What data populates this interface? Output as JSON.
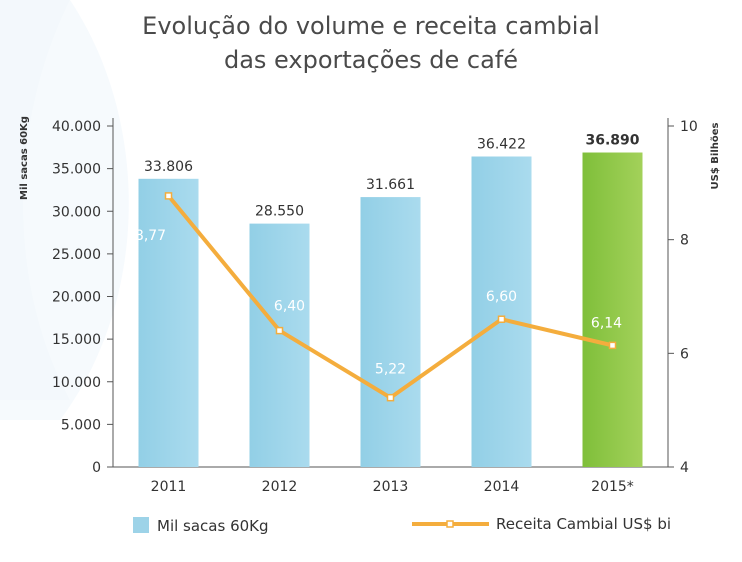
{
  "chart_data": {
    "type": "bar",
    "title": [
      "Evolução do volume e receita cambial",
      "das exportações de café"
    ],
    "categories": [
      "2011",
      "2012",
      "2013",
      "2014",
      "2015*"
    ],
    "y_left": {
      "label": "Mil sacas 60Kg",
      "ticks": [
        "0",
        "5.000",
        "10.000",
        "15.000",
        "20.000",
        "25.000",
        "30.000",
        "35.000",
        "40.000"
      ],
      "range": [
        0,
        40000
      ]
    },
    "y_right": {
      "label": "US$ Bilhões",
      "ticks": [
        "4",
        "6",
        "8",
        "10"
      ],
      "range": [
        4,
        10
      ]
    },
    "series": [
      {
        "name": "Mil sacas 60Kg",
        "type": "bar",
        "axis": "left",
        "values": [
          33806,
          28550,
          31661,
          36422,
          36890
        ],
        "labels": [
          "33.806",
          "28.550",
          "31.661",
          "36.422",
          "36.890"
        ]
      },
      {
        "name": "Receita Cambial US$ bi",
        "type": "line",
        "axis": "right",
        "values": [
          8.77,
          6.4,
          5.22,
          6.6,
          6.14
        ],
        "labels": [
          "8,77",
          "6,40",
          "5,22",
          "6,60",
          "6,14"
        ]
      }
    ],
    "colors": {
      "bar": "#9dd3e8",
      "bar_highlight": "#93c93e",
      "line": "#f4ad3d",
      "axis_text": "#333333",
      "title_text": "#4a4a4a"
    },
    "grid": false,
    "legend": "bottom"
  }
}
